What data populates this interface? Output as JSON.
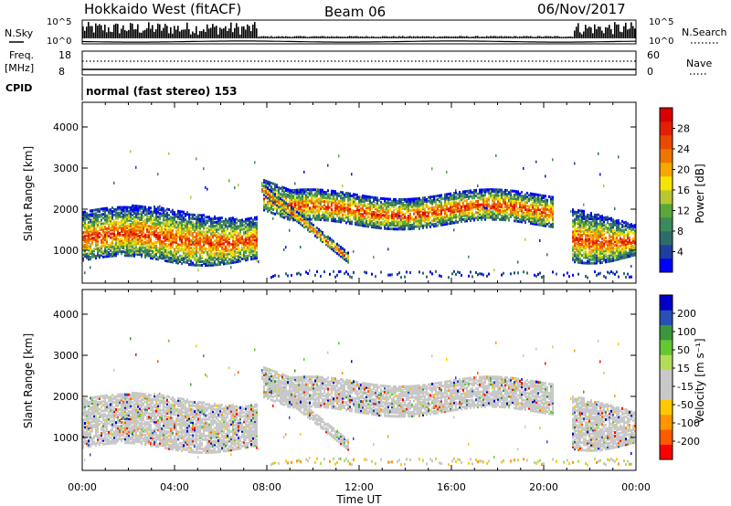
{
  "header": {
    "title": "Hokkaido West (fitACF)",
    "beam": "Beam 06",
    "date": "06/Nov/2017"
  },
  "noise_panel": {
    "left_label": "N.Sky",
    "right_label": "N.Search",
    "left_ticks": [
      "10^5",
      "10^0"
    ],
    "right_ticks": [
      "10^5",
      "10^0"
    ]
  },
  "freq_panel": {
    "left_label_line1": "Freq.",
    "left_label_line2": "[MHz]",
    "left_ticks": [
      "18",
      "8"
    ],
    "right_ticks": [
      "60",
      "0"
    ],
    "right_label": "Nave"
  },
  "cpid_panel": {
    "left_label": "CPID",
    "text": "normal (fast stereo) 153"
  },
  "colors": {
    "power": [
      "#0000ff",
      "#1e3fa0",
      "#2f6b6b",
      "#3b8a5a",
      "#5aa83a",
      "#b8c832",
      "#f5e400",
      "#f6a800",
      "#f07400",
      "#ea4a00",
      "#e41e00",
      "#d80000"
    ],
    "velocity": [
      "#ff0000",
      "#ff5a00",
      "#ff9600",
      "#ffc800",
      "#c8c8c8",
      "#c8c8c8",
      "#b4dc5a",
      "#64c832",
      "#3c963c",
      "#2850b4",
      "#0000c8"
    ]
  },
  "chart_data": [
    {
      "type": "heatmap",
      "quantity": "power",
      "ylabel": "Slant Range [km]",
      "yticks": [
        1000,
        2000,
        3000,
        4000
      ],
      "ylim": [
        200,
        4600
      ],
      "xlim": [
        0,
        24
      ],
      "colorbar": {
        "label": "Power [dB]",
        "ticks": [
          "4",
          "8",
          "12",
          "16",
          "20",
          "24",
          "28"
        ],
        "range": [
          0,
          32
        ]
      }
    },
    {
      "type": "heatmap",
      "quantity": "velocity",
      "ylabel": "Slant Range [km]",
      "yticks": [
        1000,
        2000,
        3000,
        4000
      ],
      "ylim": [
        200,
        4600
      ],
      "xlim": [
        0,
        24
      ],
      "colorbar": {
        "label": "Velocity [m s⁻¹]",
        "ticks": [
          "200",
          "100",
          "50",
          "15",
          "-15",
          "-50",
          "-100",
          "-200"
        ]
      }
    }
  ],
  "xaxis": {
    "label": "Time UT",
    "ticks": [
      "00:00",
      "04:00",
      "08:00",
      "12:00",
      "16:00",
      "20:00",
      "00:00"
    ]
  }
}
